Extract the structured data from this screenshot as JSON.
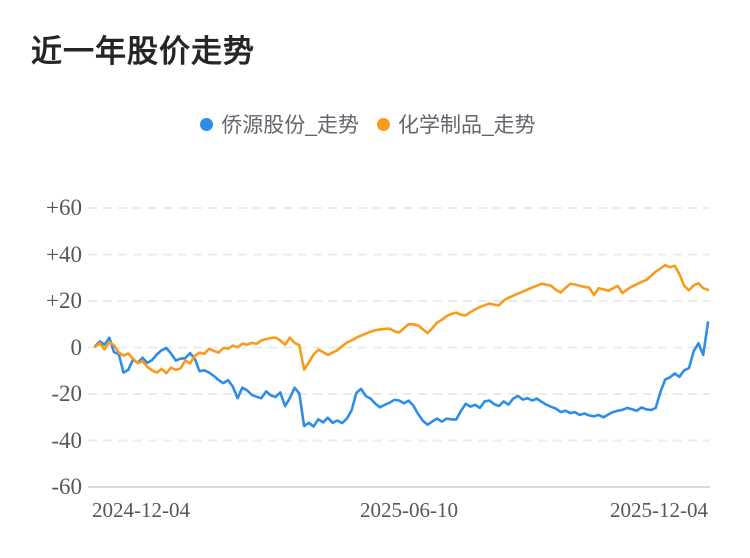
{
  "chart_data": {
    "type": "line",
    "title": "近一年股价走势",
    "legend_position": "top-center",
    "grid": "horizontal-dashed",
    "x_axis": {
      "type": "time",
      "tick_labels": [
        "2024-12-04",
        "2025-06-10",
        "2025-12-04"
      ]
    },
    "y_axis": {
      "tick_labels": [
        "+60",
        "+40",
        "+20",
        "0",
        "-20",
        "-40",
        "-60"
      ],
      "tick_values": [
        60,
        40,
        20,
        0,
        -20,
        -40,
        -60
      ],
      "min": -60,
      "max": 60,
      "unit": "percent_change"
    },
    "series": [
      {
        "name": "侨源股份_走势",
        "color": "#2e8de9",
        "values": [
          0.5,
          2.6,
          1.2,
          4.2,
          -2.0,
          -2.8,
          -10.8,
          -9.6,
          -5.2,
          -6.6,
          -4.4,
          -6.6,
          -5.4,
          -3.0,
          -1.2,
          -0.2,
          -2.6,
          -5.6,
          -4.8,
          -4.6,
          -2.4,
          -4.8,
          -10.2,
          -9.8,
          -10.8,
          -12.2,
          -14.0,
          -15.3,
          -14.0,
          -16.8,
          -21.8,
          -17.3,
          -18.4,
          -20.4,
          -21.2,
          -21.8,
          -18.9,
          -20.6,
          -21.3,
          -19.3,
          -25.2,
          -21.8,
          -17.3,
          -19.8,
          -33.8,
          -32.4,
          -34.0,
          -30.9,
          -32.2,
          -30.2,
          -32.4,
          -31.4,
          -32.5,
          -30.6,
          -27.0,
          -19.5,
          -17.8,
          -20.9,
          -22.0,
          -24.2,
          -25.7,
          -24.6,
          -23.8,
          -22.5,
          -22.8,
          -24.0,
          -22.9,
          -25.0,
          -28.6,
          -31.5,
          -33.2,
          -31.8,
          -30.6,
          -31.9,
          -30.6,
          -30.9,
          -31.0,
          -27.3,
          -24.2,
          -25.4,
          -24.7,
          -26.0,
          -23.2,
          -22.8,
          -24.4,
          -25.2,
          -23.2,
          -24.6,
          -22.0,
          -20.8,
          -22.4,
          -21.8,
          -22.8,
          -22.0,
          -23.4,
          -24.6,
          -25.5,
          -26.3,
          -27.8,
          -27.2,
          -28.2,
          -27.8,
          -29.0,
          -28.4,
          -29.2,
          -29.6,
          -29.0,
          -30.0,
          -28.8,
          -27.8,
          -27.2,
          -26.8,
          -26.0,
          -26.6,
          -27.2,
          -25.8,
          -26.6,
          -26.9,
          -26.0,
          -19.0,
          -13.8,
          -12.8,
          -11.2,
          -12.6,
          -9.8,
          -8.8,
          -1.6,
          1.8,
          -3.2,
          10.8
        ]
      },
      {
        "name": "化学制品_走势",
        "color": "#f89b1c",
        "values": [
          0.3,
          1.8,
          -0.8,
          2.3,
          1.0,
          -2.2,
          -3.5,
          -2.6,
          -4.8,
          -6.8,
          -5.8,
          -8.3,
          -9.8,
          -10.8,
          -9.2,
          -11.0,
          -8.7,
          -9.6,
          -9.0,
          -5.6,
          -6.9,
          -3.6,
          -2.2,
          -2.7,
          -0.6,
          -1.4,
          -2.2,
          -0.2,
          -0.5,
          0.8,
          0.1,
          1.6,
          1.2,
          2.0,
          1.6,
          3.0,
          3.6,
          4.1,
          4.3,
          3.0,
          1.2,
          4.2,
          2.0,
          1.0,
          -9.5,
          -6.5,
          -3.0,
          -1.0,
          -2.0,
          -3.2,
          -2.2,
          -1.2,
          0.5,
          2.1,
          3.0,
          4.2,
          5.1,
          6.0,
          6.8,
          7.4,
          7.8,
          8.0,
          8.1,
          7.0,
          6.4,
          8.3,
          10.0,
          10.0,
          9.5,
          7.8,
          6.2,
          8.4,
          10.7,
          11.9,
          13.5,
          14.4,
          15.0,
          14.1,
          13.8,
          15.2,
          16.4,
          17.4,
          18.2,
          18.9,
          18.4,
          18.1,
          20.2,
          21.4,
          22.3,
          23.2,
          24.0,
          24.9,
          25.8,
          26.6,
          27.4,
          27.0,
          26.5,
          24.8,
          23.6,
          25.6,
          27.4,
          27.1,
          26.6,
          26.1,
          25.7,
          22.6,
          25.5,
          25.0,
          24.4,
          25.4,
          26.5,
          23.4,
          25.0,
          26.2,
          27.2,
          28.2,
          29.0,
          30.8,
          32.6,
          34.0,
          35.4,
          34.5,
          35.2,
          31.5,
          26.5,
          24.6,
          26.8,
          27.6,
          25.5,
          24.8
        ]
      }
    ]
  }
}
